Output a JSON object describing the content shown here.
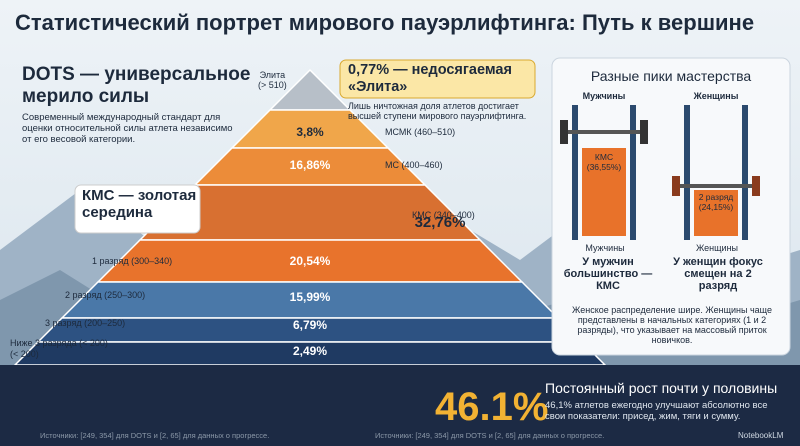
{
  "header": {
    "title": "Статистический портрет мирового пауэрлифтинга: Путь к вершине"
  },
  "dots": {
    "title": "DOTS — универсальное мерило силы",
    "text": "Современный международный стандарт для оценки относительной силы атлета независимо от его весовой категории."
  },
  "kms_callout": "КМС — золотая середина",
  "elite": {
    "label": "Элита\n(> 510)",
    "callout": "0,77% — недосягаемая «Элита»",
    "text": "Лишь ничтожная доля атлетов достигает высшей ступени мирового пауэрлифтинга."
  },
  "levels": [
    {
      "percent": "3,8%",
      "label": "МСМК (460–510)"
    },
    {
      "percent": "16,86%",
      "label": "МС (400–460)"
    },
    {
      "percent": "32,76%",
      "label": "КМС (340–400)"
    },
    {
      "percent": "20,54%",
      "label": "1 разряд (300–340)"
    },
    {
      "percent": "15,99%",
      "label": "2 разряд (250–300)"
    },
    {
      "percent": "6,79%",
      "label": "3 разряд (200–250)"
    },
    {
      "percent": "2,49%",
      "label": "Ниже 3 разряда (< 200)\n(< 200)"
    }
  ],
  "peaks": {
    "title": "Разные пики мастерства",
    "men": "Мужчины",
    "women": "Женщины",
    "men_bar": "КМС\n(36,55%)",
    "women_bar": "2 разряд\n(24,15%)",
    "men_label": "Мужчины",
    "women_label": "Женщины",
    "men_text": "У мужчин большинство — КМС",
    "women_text": "У женщин фокус смещен на 2 разряд",
    "note": "Женское распределение шире. Женщины чаще представлены в начальных категориях (1 и 2 разряды), что указывает на массовый приток новичков."
  },
  "growth": {
    "big": "46.1%",
    "title": "Постоянный рост почти у половины",
    "text": "46,1% атлетов ежегодно улучшают абсолютно все свои показатели: присед, жим, тяги и сумму."
  },
  "sources": [
    "Источники: [249, 354] для DOTS и [2, 65] для данных о прогрессе.",
    "Источники: [249, 354] для DOTS и [2, 65] для данных о прогрессе."
  ],
  "brand": "NotebookLM"
}
